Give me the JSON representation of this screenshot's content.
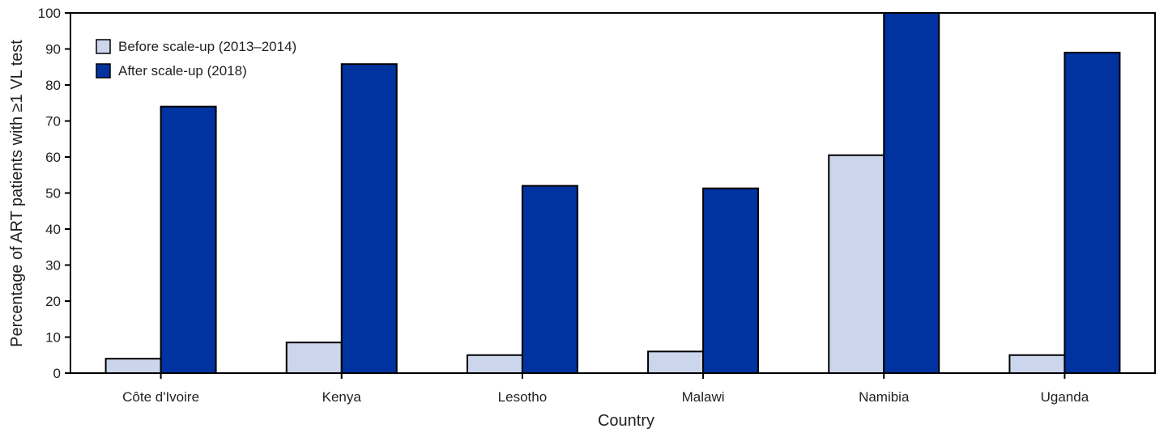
{
  "chart_data": {
    "type": "bar",
    "title": "",
    "xlabel": "Country",
    "ylabel": "Percentage of ART patients with ≥1 VL test",
    "categories": [
      "Côte d'Ivoire",
      "Kenya",
      "Lesotho",
      "Malawi",
      "Namibia",
      "Uganda"
    ],
    "series": [
      {
        "name": "Before scale-up (2013–2014)",
        "color": "#cbd5ec",
        "values": [
          4,
          8.5,
          5,
          6,
          60.5,
          5
        ]
      },
      {
        "name": "After scale-up (2018)",
        "color": "#0033a0",
        "values": [
          74,
          85.8,
          52,
          51.3,
          100,
          89
        ]
      }
    ],
    "ylim": [
      0,
      100
    ],
    "yticks": [
      0,
      10,
      20,
      30,
      40,
      50,
      60,
      70,
      80,
      90,
      100
    ],
    "grid": false,
    "legend_position": "top-left"
  }
}
